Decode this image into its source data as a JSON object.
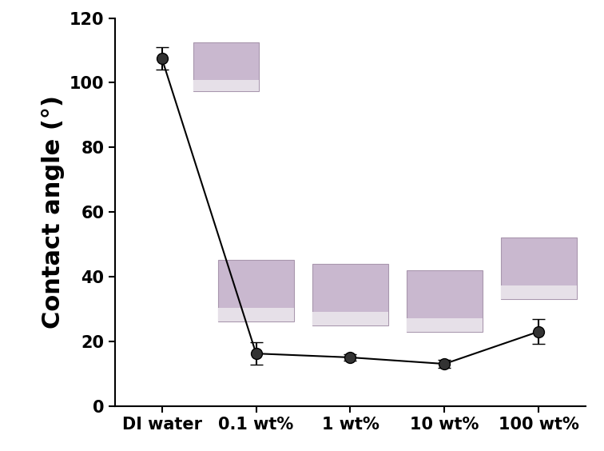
{
  "chart_data": {
    "type": "line",
    "y_label": "Contact angle (°)",
    "categories": [
      "DI water",
      "0.1 wt%",
      "1 wt%",
      "10 wt%",
      "100 wt%"
    ],
    "values": [
      107.5,
      16.2,
      15.0,
      13.0,
      23.0
    ],
    "error": [
      3.5,
      3.5,
      1.0,
      1.2,
      3.8
    ],
    "color": "#000000",
    "marker": "o",
    "line_style": "solid",
    "ylim": [
      0,
      120
    ],
    "yticks": [
      0,
      20,
      40,
      60,
      80,
      100,
      120
    ]
  }
}
